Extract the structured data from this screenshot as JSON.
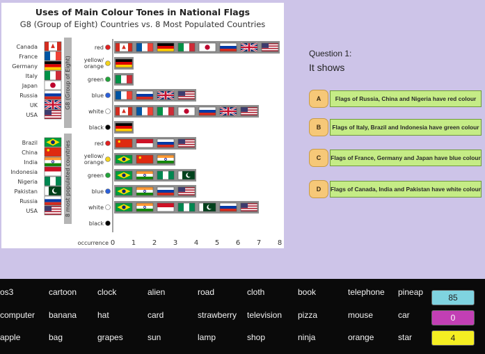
{
  "chart_data": {
    "type": "table",
    "title": "Uses of Main Colour Tones in National Flags",
    "subtitle": "G8 (Group of Eight) Countries vs. 8 Most Populated Countries",
    "xlabel": "occurrence",
    "x_ticks": [
      "0",
      "1",
      "2",
      "3",
      "4",
      "5",
      "6",
      "7",
      "8"
    ],
    "xlim": [
      0,
      8
    ],
    "groups": [
      {
        "name": "G8 (Group of Eight)",
        "countries": [
          "Canada",
          "France",
          "Germany",
          "Italy",
          "Japan",
          "Russia",
          "UK",
          "USA"
        ],
        "colours": [
          {
            "label": "red",
            "dot": "#e02020",
            "flags": [
              "canada",
              "france",
              "germany",
              "italy",
              "japan",
              "russia",
              "uk",
              "usa"
            ]
          },
          {
            "label": "yellow/\norange",
            "dot": "#f2d21b",
            "flags": [
              "germany"
            ]
          },
          {
            "label": "green",
            "dot": "#22a33a",
            "flags": [
              "italy"
            ]
          },
          {
            "label": "blue",
            "dot": "#2b5fd9",
            "flags": [
              "france",
              "russia",
              "uk",
              "usa"
            ]
          },
          {
            "label": "white",
            "dot": "#ffffff",
            "flags": [
              "canada",
              "france",
              "italy",
              "japan",
              "russia",
              "uk",
              "usa"
            ]
          },
          {
            "label": "black",
            "dot": "#000000",
            "flags": [
              "germany"
            ]
          }
        ]
      },
      {
        "name": "8 most populated countries",
        "countries": [
          "Brazil",
          "China",
          "India",
          "Indonesia",
          "Nigeria",
          "Pakistan",
          "Russia",
          "USA"
        ],
        "colours": [
          {
            "label": "red",
            "dot": "#e02020",
            "flags": [
              "china",
              "indonesia",
              "russia",
              "usa"
            ]
          },
          {
            "label": "yellow/\norange",
            "dot": "#f2d21b",
            "flags": [
              "brazil",
              "china",
              "india"
            ]
          },
          {
            "label": "green",
            "dot": "#22a33a",
            "flags": [
              "brazil",
              "india",
              "nigeria",
              "pakistan"
            ]
          },
          {
            "label": "blue",
            "dot": "#2b5fd9",
            "flags": [
              "brazil",
              "india",
              "russia",
              "usa"
            ]
          },
          {
            "label": "white",
            "dot": "#ffffff",
            "flags": [
              "brazil",
              "india",
              "indonesia",
              "nigeria",
              "pakistan",
              "russia",
              "usa"
            ]
          },
          {
            "label": "black",
            "dot": "#000000",
            "flags": []
          }
        ]
      }
    ]
  },
  "question": {
    "label": "Question 1:",
    "prompt": "It shows",
    "options": [
      {
        "letter": "A",
        "text": "Flags of Russia, China and Nigeria have red colour"
      },
      {
        "letter": "B",
        "text": "Flags of Italy, Brazil and Indonesia have green colour"
      },
      {
        "letter": "C",
        "text": "Flags of France, Germany and Japan have blue colour"
      },
      {
        "letter": "D",
        "text": "Flags of Canada, India and Pakistan have white colour"
      }
    ]
  },
  "words": [
    [
      "os3",
      "cartoon",
      "clock",
      "alien",
      "road",
      "cloth",
      "book",
      "telephone",
      "pineap"
    ],
    [
      "computer",
      "banana",
      "hat",
      "card",
      "strawberry",
      "television",
      "pizza",
      "mouse",
      "car"
    ],
    [
      "apple",
      "bag",
      "grapes",
      "sun",
      "lamp",
      "shop",
      "ninja",
      "orange",
      "star"
    ]
  ],
  "scores": [
    {
      "value": "85",
      "color": "#7fd3e0"
    },
    {
      "value": "0",
      "color": "#c23fb4"
    },
    {
      "value": "4",
      "color": "#f4ee22"
    }
  ]
}
